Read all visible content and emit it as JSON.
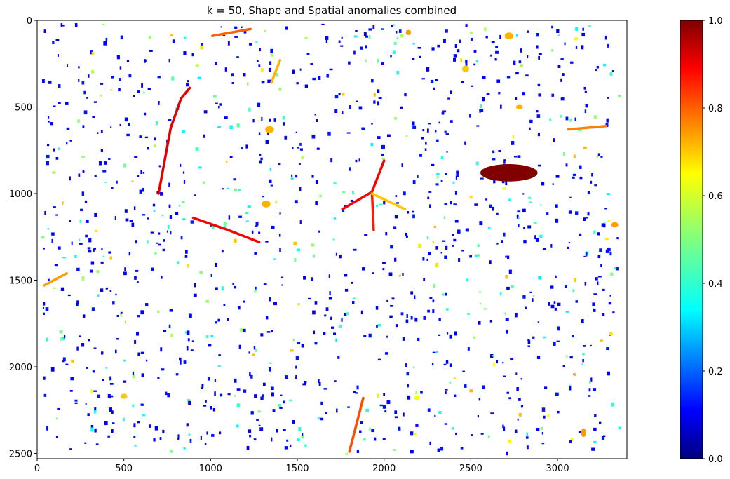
{
  "chart_data": {
    "type": "scatter",
    "title": "k = 50, Shape and Spatial anomalies combined",
    "xlabel": "",
    "ylabel": "",
    "xlim": [
      0,
      3400
    ],
    "ylim": [
      2530,
      0
    ],
    "y_inverted": true,
    "x_ticks": [
      "0",
      "500",
      "1000",
      "1500",
      "2000",
      "2500",
      "3000"
    ],
    "x_tick_values": [
      0,
      500,
      1000,
      1500,
      2000,
      2500,
      3000
    ],
    "y_ticks": [
      "0",
      "500",
      "1000",
      "1500",
      "2000",
      "2500"
    ],
    "y_tick_values": [
      0,
      500,
      1000,
      1500,
      2000,
      2500
    ],
    "grid": false,
    "colormap": "jet",
    "colorbar": {
      "range": [
        0.0,
        1.0
      ],
      "ticks": [
        "0.0",
        "0.2",
        "0.4",
        "0.6",
        "0.8",
        "1.0"
      ],
      "tick_values": [
        0,
        0.2,
        0.4,
        0.6,
        0.8,
        1.0
      ]
    },
    "highlighted_objects": [
      {
        "shape": "line",
        "points": [
          [
            700,
            1000
          ],
          [
            770,
            620
          ],
          [
            830,
            450
          ],
          [
            880,
            390
          ]
        ],
        "score": 0.9
      },
      {
        "shape": "line",
        "points": [
          [
            900,
            1140
          ],
          [
            1100,
            1210
          ],
          [
            1280,
            1280
          ]
        ],
        "score": 0.88
      },
      {
        "shape": "line",
        "points": [
          [
            1760,
            1090
          ],
          [
            1930,
            990
          ],
          [
            2000,
            810
          ]
        ],
        "score": 0.88
      },
      {
        "shape": "line",
        "points": [
          [
            1930,
            990
          ],
          [
            1940,
            1210
          ]
        ],
        "score": 0.85
      },
      {
        "shape": "line",
        "points": [
          [
            1930,
            1000
          ],
          [
            2120,
            1090
          ]
        ],
        "score": 0.68
      },
      {
        "shape": "line",
        "points": [
          [
            1800,
            2490
          ],
          [
            1880,
            2180
          ]
        ],
        "score": 0.8
      },
      {
        "shape": "line",
        "points": [
          [
            1010,
            90
          ],
          [
            1230,
            50
          ]
        ],
        "score": 0.78
      },
      {
        "shape": "line",
        "points": [
          [
            40,
            1530
          ],
          [
            170,
            1460
          ]
        ],
        "score": 0.72
      },
      {
        "shape": "line",
        "points": [
          [
            3060,
            630
          ],
          [
            3280,
            610
          ]
        ],
        "score": 0.75
      },
      {
        "shape": "line",
        "points": [
          [
            1350,
            360
          ],
          [
            1400,
            230
          ]
        ],
        "score": 0.7
      },
      {
        "shape": "blob",
        "x": 2720,
        "y": 880,
        "w": 330,
        "h": 100,
        "score": 1.0
      },
      {
        "shape": "blob",
        "x": 2190,
        "y": 2180,
        "w": 30,
        "h": 30,
        "score": 0.62
      },
      {
        "shape": "blob",
        "x": 500,
        "y": 2170,
        "w": 40,
        "h": 30,
        "score": 0.68
      },
      {
        "shape": "blob",
        "x": 2780,
        "y": 500,
        "w": 40,
        "h": 20,
        "score": 0.7
      },
      {
        "shape": "blob",
        "x": 2720,
        "y": 90,
        "w": 50,
        "h": 40,
        "score": 0.7
      },
      {
        "shape": "blob",
        "x": 2470,
        "y": 280,
        "w": 40,
        "h": 40,
        "score": 0.68
      },
      {
        "shape": "blob",
        "x": 3150,
        "y": 2380,
        "w": 30,
        "h": 50,
        "score": 0.72
      },
      {
        "shape": "blob",
        "x": 1320,
        "y": 1060,
        "w": 50,
        "h": 40,
        "score": 0.7
      },
      {
        "shape": "blob",
        "x": 1340,
        "y": 630,
        "w": 50,
        "h": 40,
        "score": 0.7
      },
      {
        "shape": "blob",
        "x": 3330,
        "y": 1180,
        "w": 40,
        "h": 30,
        "score": 0.72
      },
      {
        "shape": "blob",
        "x": 2140,
        "y": 70,
        "w": 30,
        "h": 30,
        "score": 0.72
      }
    ],
    "points_note_values": "small objects scored mostly near 0.1 (blue), some near 0.35-0.55 (cyan-green), few near 0.6-0.7"
  }
}
